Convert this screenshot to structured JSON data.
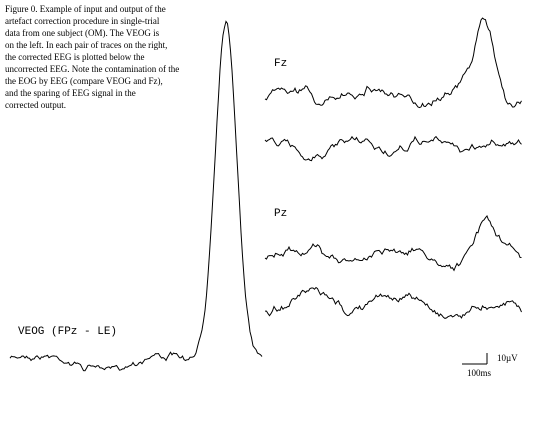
{
  "figure": {
    "caption_lines": [
      "Figure 0. Example of input and output of the",
      "artefact correction procedure in single-trial",
      "data from one subject (OM). The VEOG is",
      "on the left. In each pair of traces on the right,",
      "the corrected EEG is plotted below the",
      "uncorrected EEG.  Note the contamination of the",
      "the EOG by EEG (compare VEOG and Fz),",
      "and the sparing of EEG signal in the",
      "corrected output."
    ],
    "veog_label": "VEOG  (FPz - LE)",
    "fz_label": "Fz",
    "pz_label": "Pz",
    "scale_voltage": "10µV",
    "scale_time": "100ms"
  }
}
